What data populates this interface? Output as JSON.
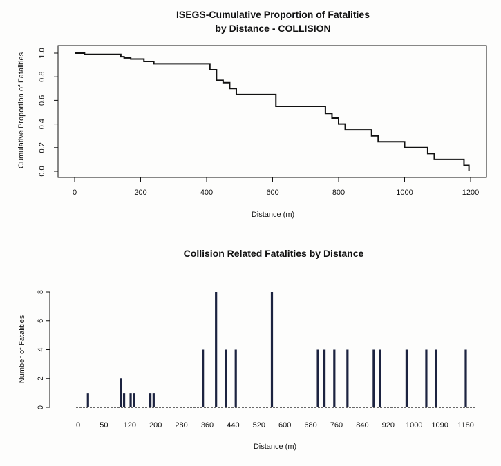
{
  "chart_data": [
    {
      "type": "line",
      "title": "ISEGS-Cumulative Proportion of Fatalities",
      "subtitle": "by Distance - COLLISION",
      "xlabel": "Distance (m)",
      "ylabel": "Cumulative Proportion of Fatalities",
      "xlim": [
        0,
        1200
      ],
      "ylim": [
        0,
        1
      ],
      "xticks": [
        0,
        200,
        400,
        600,
        800,
        1000,
        1200
      ],
      "yticks": [
        0.0,
        0.2,
        0.4,
        0.6,
        0.8,
        1.0
      ],
      "xtick_labels": [
        "0",
        "200",
        "400",
        "600",
        "800",
        "1000",
        "1200"
      ],
      "ytick_labels": [
        "0.0",
        "0.2",
        "0.4",
        "0.6",
        "0.8",
        "1.0"
      ],
      "grid": false,
      "series": [
        {
          "step": true,
          "x": [
            0,
            20,
            30,
            130,
            140,
            150,
            170,
            210,
            240,
            380,
            410,
            430,
            450,
            470,
            490,
            590,
            610,
            740,
            760,
            780,
            800,
            820,
            890,
            900,
            920,
            980,
            1000,
            1050,
            1070,
            1090,
            1180,
            1195
          ],
          "y": [
            1.0,
            1.0,
            0.99,
            0.99,
            0.97,
            0.96,
            0.95,
            0.93,
            0.91,
            0.91,
            0.86,
            0.77,
            0.75,
            0.7,
            0.65,
            0.65,
            0.55,
            0.55,
            0.49,
            0.45,
            0.4,
            0.35,
            0.35,
            0.3,
            0.25,
            0.25,
            0.2,
            0.2,
            0.15,
            0.1,
            0.05,
            0.0
          ]
        }
      ]
    },
    {
      "type": "bar",
      "title": "Collision Related Fatalities by Distance",
      "xlabel": "Distance (m)",
      "ylabel": "Number of Fatalities",
      "ylim": [
        0,
        8
      ],
      "yticks": [
        0,
        2,
        4,
        6,
        8
      ],
      "ytick_labels": [
        "0",
        "2",
        "4",
        "6",
        "8"
      ],
      "xtick_labels": [
        "0",
        "50",
        "120",
        "200",
        "280",
        "360",
        "440",
        "520",
        "600",
        "680",
        "760",
        "840",
        "920",
        "1000",
        "1090",
        "1180"
      ],
      "grid": false,
      "x": [
        30,
        130,
        140,
        160,
        170,
        220,
        230,
        380,
        420,
        450,
        480,
        590,
        730,
        750,
        780,
        820,
        900,
        920,
        1000,
        1060,
        1090,
        1180
      ],
      "values": [
        1,
        2,
        1,
        1,
        1,
        1,
        1,
        4,
        8,
        4,
        4,
        8,
        4,
        4,
        4,
        4,
        4,
        4,
        4,
        4,
        4,
        4
      ]
    }
  ]
}
